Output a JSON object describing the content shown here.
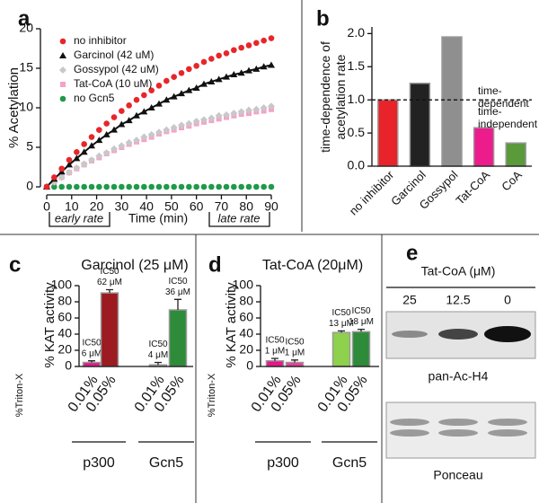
{
  "chart_data": [
    {
      "type": "line",
      "panel_label": "a",
      "ylabel": "% Acetylation",
      "xlabel": "Time (min)",
      "annotations": [
        "early rate",
        "late rate"
      ],
      "xlim": [
        0,
        90
      ],
      "xticks": [
        0,
        10,
        20,
        30,
        40,
        50,
        60,
        70,
        80,
        90
      ],
      "ylim": [
        0,
        20
      ],
      "yticks": [
        0,
        5,
        10,
        15,
        20
      ],
      "x": [
        0,
        3,
        6,
        9,
        12,
        15,
        18,
        21,
        24,
        27,
        30,
        33,
        36,
        39,
        42,
        45,
        48,
        51,
        54,
        57,
        60,
        63,
        66,
        69,
        72,
        75,
        78,
        81,
        84,
        87,
        90
      ],
      "series": [
        {
          "name": "no inhibitor",
          "color": "#e8262a",
          "marker": "circle",
          "line": false,
          "values": [
            0,
            1.2,
            2.3,
            3.4,
            4.4,
            5.4,
            6.3,
            7.2,
            8.0,
            8.8,
            9.6,
            10.3,
            11.0,
            11.6,
            12.2,
            12.8,
            13.4,
            13.9,
            14.4,
            14.9,
            15.3,
            15.8,
            16.2,
            16.6,
            16.9,
            17.3,
            17.6,
            17.9,
            18.2,
            18.5,
            18.8
          ]
        },
        {
          "name": "Garcinol (42 uM)",
          "color": "#111111",
          "marker": "triangle",
          "line": true,
          "values": [
            0,
            1.0,
            1.9,
            2.8,
            3.6,
            4.4,
            5.2,
            5.9,
            6.6,
            7.2,
            7.9,
            8.4,
            9.0,
            9.5,
            10.0,
            10.5,
            11.0,
            11.4,
            11.8,
            12.2,
            12.5,
            13.0,
            13.3,
            13.6,
            13.9,
            14.2,
            14.4,
            14.7,
            14.9,
            15.2,
            15.4
          ]
        },
        {
          "name": "Gossypol (42 uM)",
          "color": "#c8c8c8",
          "marker": "diamond",
          "line": false,
          "values": [
            0,
            0.6,
            1.2,
            1.8,
            2.4,
            2.9,
            3.4,
            3.9,
            4.3,
            4.8,
            5.2,
            5.6,
            5.9,
            6.3,
            6.6,
            6.9,
            7.2,
            7.5,
            7.8,
            8.0,
            8.3,
            8.5,
            8.7,
            9.0,
            9.1,
            9.3,
            9.5,
            9.7,
            9.8,
            10.0,
            10.2
          ]
        },
        {
          "name": "Tat-CoA (10 uM)",
          "color": "#f4a3c8",
          "marker": "square",
          "line": false,
          "values": [
            0,
            0.6,
            1.2,
            1.8,
            2.3,
            2.8,
            3.3,
            3.7,
            4.2,
            4.6,
            5.0,
            5.4,
            5.7,
            6.0,
            6.3,
            6.7,
            7.0,
            7.2,
            7.5,
            7.7,
            8.0,
            8.2,
            8.4,
            8.6,
            8.8,
            9.0,
            9.2,
            9.3,
            9.5,
            9.6,
            9.8
          ]
        },
        {
          "name": "no Gcn5",
          "color": "#1e9a48",
          "marker": "circle",
          "line": false,
          "values": [
            0,
            0,
            0,
            0,
            0,
            0,
            0,
            0,
            0,
            0,
            0,
            0,
            0,
            0,
            0,
            0,
            0,
            0,
            0,
            0,
            0,
            0,
            0,
            0,
            0,
            0,
            0,
            0,
            0,
            0,
            0
          ]
        }
      ]
    },
    {
      "type": "bar",
      "panel_label": "b",
      "ylabel": [
        "time-dependence of",
        "acetylation rate"
      ],
      "categories": [
        "no inhibitor",
        "Garcinol",
        "Gossypol",
        "Tat-CoA",
        "CoA"
      ],
      "values": [
        1.0,
        1.25,
        1.95,
        0.58,
        0.35
      ],
      "colors": [
        "#e8242a",
        "#222222",
        "#8f8f8f",
        "#ec1c8c",
        "#5a9a3a"
      ],
      "edgecolor": "#9a9a9a",
      "ylim": [
        0,
        2.1
      ],
      "yticks": [
        {
          "value": 0,
          "label": "0.0"
        },
        0.5,
        {
          "value": 1,
          "label": "1.0"
        },
        1.5,
        {
          "value": 2,
          "label": "2.0"
        }
      ],
      "hline": 1,
      "annotations": [
        {
          "lines": [
            "time-",
            "dependent"
          ],
          "color": "#e8112d"
        },
        {
          "lines": [
            "time-",
            "independent"
          ],
          "color": "#2a8c2a"
        }
      ]
    },
    {
      "type": "bar",
      "panel_label": "c",
      "title": "Garcinol (25 μM)",
      "ylabel": "% KAT activity",
      "category_axis_label": "%Triton-X",
      "categories": [
        "0.01%",
        "0.05%",
        "0.01%",
        "0.05%"
      ],
      "groups": [
        "p300",
        "Gcn5"
      ],
      "values": [
        5,
        91,
        2,
        70
      ],
      "errors": [
        2,
        4,
        3,
        13
      ],
      "colors": [
        "#e6168a",
        "#9b1b20",
        "#d0d0d0",
        "#2e8b3a"
      ],
      "edgecolor": "#9a9a9a",
      "ylim": [
        0,
        100
      ],
      "yticks": [
        0,
        20,
        40,
        60,
        80,
        100
      ],
      "annotations": [
        [
          "IC50",
          "6 μM"
        ],
        [
          "IC50",
          "62 μM"
        ],
        [
          "IC50",
          "4 μM"
        ],
        [
          "IC50",
          "36 μM"
        ]
      ]
    },
    {
      "type": "bar",
      "panel_label": "d",
      "title": "Tat-CoA (20μM)",
      "ylabel": "% KAT activity",
      "category_axis_label": "%Triton-X",
      "categories": [
        "0.01%",
        "0.05%",
        "0.01%",
        "0.05%"
      ],
      "groups": [
        "p300",
        "Gcn5"
      ],
      "values": [
        7,
        5,
        42,
        43
      ],
      "errors": [
        3,
        3,
        2,
        3
      ],
      "colors": [
        "#e6168a",
        "#ee3a9a",
        "#8ed14c",
        "#2e8b3a"
      ],
      "edgecolor": "#9a9a9a",
      "ylim": [
        0,
        100
      ],
      "yticks": [
        0,
        20,
        40,
        60,
        80,
        100
      ],
      "annotations": [
        [
          "IC50",
          "1 μM"
        ],
        [
          "IC50",
          "1 μM"
        ],
        [
          "IC50",
          "13 μM"
        ],
        [
          "IC50",
          "18 μM"
        ]
      ]
    }
  ],
  "blot": {
    "panel_label": "e",
    "title": "Tat-CoA (μM)",
    "lanes": [
      "25",
      "12.5",
      "0"
    ],
    "blots": [
      "pan-Ac-H4",
      "Ponceau"
    ]
  }
}
